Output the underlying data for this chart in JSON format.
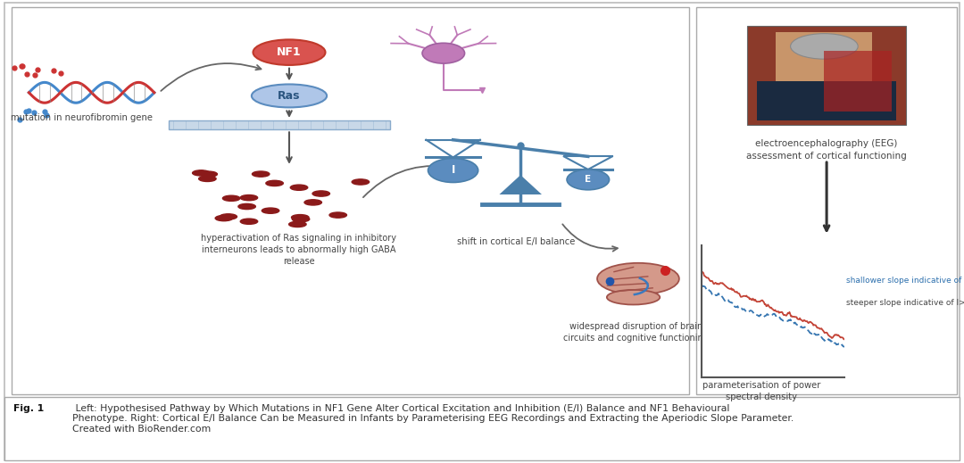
{
  "bg_color": "#ffffff",
  "caption_bold": "Fig. 1",
  "caption_text": " Left: Hypothesised Pathway by Which Mutations in NF1 Gene Alter Cortical Excitation and Inhibition (E/I) Balance and NF1 Behavioural\nPhenotype. Right: Cortical E/I Balance Can be Measured in Infants by Parameterising EEG Recordings and Extracting the Aperiodic Slope Parameter.\nCreated with BioRender.com",
  "eeg_label": "electroencephalography (EEG)\nassessment of cortical functioning",
  "psd_label": "parameterisation of power\nspectral density",
  "shallow_label": "shallower slope indicative of E>I",
  "steep_label": "steeper slope indicative of I>E",
  "red_color": "#c0392b",
  "blue_color": "#2c6fad",
  "text_color": "#444444",
  "dna_color_blue": "#4488cc",
  "dna_color_red": "#cc3333",
  "nf1_fill": "#d9534f",
  "nf1_edge": "#c0392b",
  "ras_fill": "#aec6e8",
  "ras_edge": "#5b8cbf",
  "gaba_color": "#8b1a1a",
  "balance_color": "#4a7faa",
  "neuron_color": "#c07ab8",
  "brain_fill": "#d4998a",
  "brain_edge": "#a0524a"
}
